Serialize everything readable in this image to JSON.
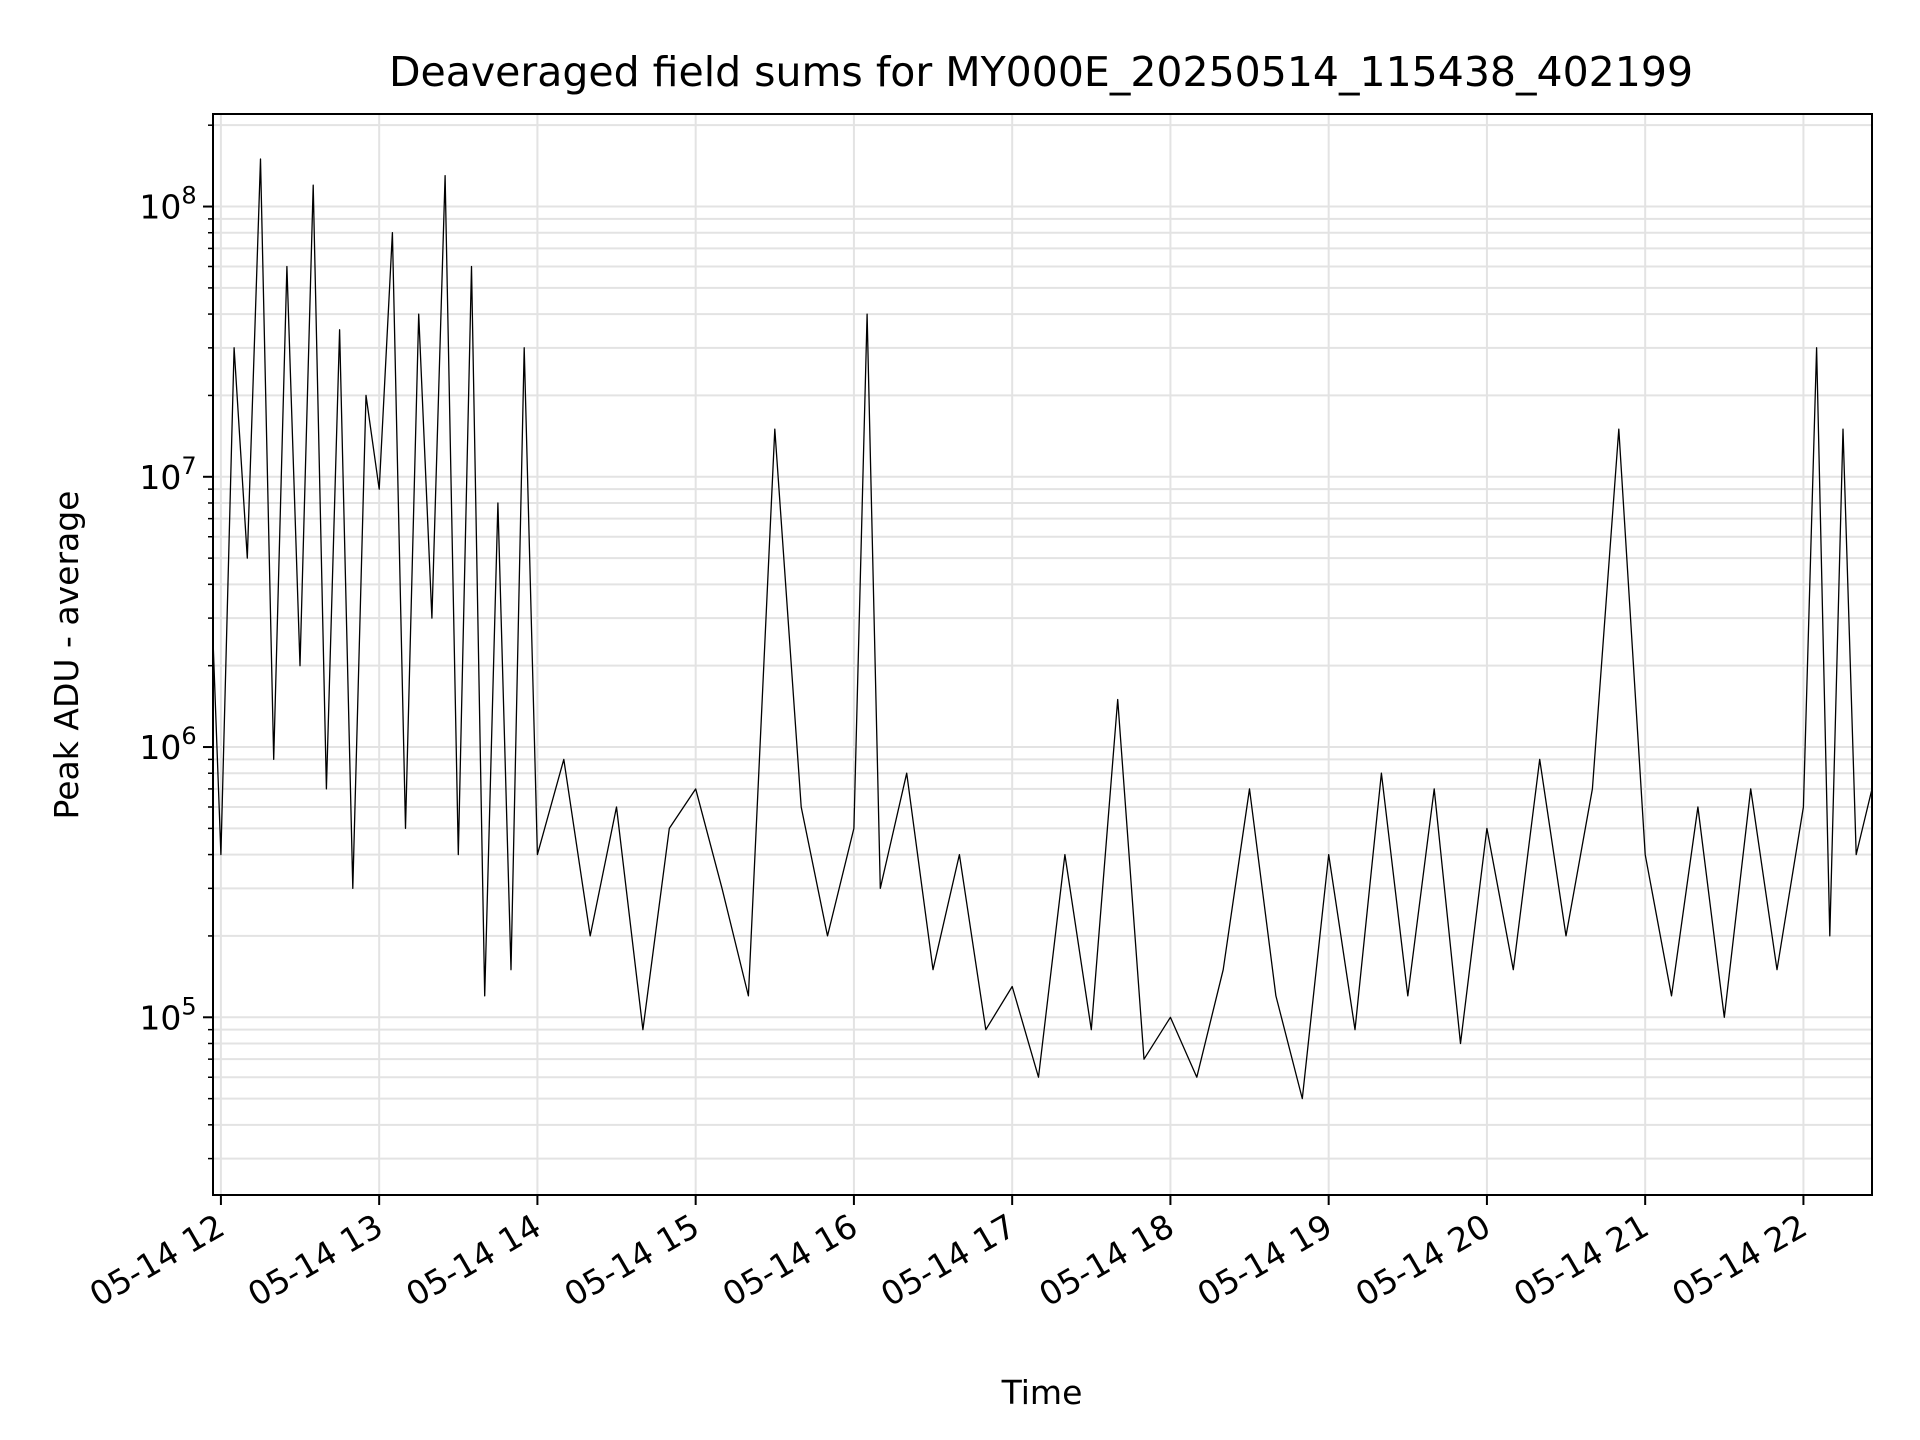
{
  "chart_data": {
    "type": "line",
    "title": "Deaveraged field sums for MY000E_20250514_115438_402199",
    "xlabel": "Time",
    "ylabel": "Peak ADU - average",
    "y_scale": "log",
    "ylim": [
      22000,
      220000000
    ],
    "xlim": [
      "2025-05-14 11:57",
      "2025-05-14 22:26"
    ],
    "x_ticks": [
      "05-14 12",
      "05-14 13",
      "05-14 14",
      "05-14 15",
      "05-14 16",
      "05-14 17",
      "05-14 18",
      "05-14 19",
      "05-14 20",
      "05-14 21",
      "05-14 22"
    ],
    "y_ticks": [
      {
        "base": "10",
        "exp": "5"
      },
      {
        "base": "10",
        "exp": "6"
      },
      {
        "base": "10",
        "exp": "7"
      },
      {
        "base": "10",
        "exp": "8"
      }
    ],
    "grid": true,
    "line_color": "#000000",
    "series": [
      {
        "x": [
          "2025-05-14 11:57",
          "2025-05-14 12:00",
          "2025-05-14 12:05",
          "2025-05-14 12:10",
          "2025-05-14 12:15",
          "2025-05-14 12:20",
          "2025-05-14 12:25",
          "2025-05-14 12:30",
          "2025-05-14 12:35",
          "2025-05-14 12:40",
          "2025-05-14 12:45",
          "2025-05-14 12:50",
          "2025-05-14 12:55",
          "2025-05-14 13:00",
          "2025-05-14 13:05",
          "2025-05-14 13:10",
          "2025-05-14 13:15",
          "2025-05-14 13:20",
          "2025-05-14 13:25",
          "2025-05-14 13:30",
          "2025-05-14 13:35",
          "2025-05-14 13:40",
          "2025-05-14 13:45",
          "2025-05-14 13:50",
          "2025-05-14 13:55",
          "2025-05-14 14:00",
          "2025-05-14 14:10",
          "2025-05-14 14:20",
          "2025-05-14 14:30",
          "2025-05-14 14:40",
          "2025-05-14 14:50",
          "2025-05-14 15:00",
          "2025-05-14 15:10",
          "2025-05-14 15:20",
          "2025-05-14 15:30",
          "2025-05-14 15:40",
          "2025-05-14 15:50",
          "2025-05-14 16:00",
          "2025-05-14 16:05",
          "2025-05-14 16:10",
          "2025-05-14 16:20",
          "2025-05-14 16:30",
          "2025-05-14 16:40",
          "2025-05-14 16:50",
          "2025-05-14 17:00",
          "2025-05-14 17:10",
          "2025-05-14 17:20",
          "2025-05-14 17:30",
          "2025-05-14 17:40",
          "2025-05-14 17:50",
          "2025-05-14 18:00",
          "2025-05-14 18:10",
          "2025-05-14 18:20",
          "2025-05-14 18:30",
          "2025-05-14 18:40",
          "2025-05-14 18:50",
          "2025-05-14 19:00",
          "2025-05-14 19:10",
          "2025-05-14 19:20",
          "2025-05-14 19:30",
          "2025-05-14 19:40",
          "2025-05-14 19:50",
          "2025-05-14 20:00",
          "2025-05-14 20:10",
          "2025-05-14 20:20",
          "2025-05-14 20:30",
          "2025-05-14 20:40",
          "2025-05-14 20:50",
          "2025-05-14 21:00",
          "2025-05-14 21:10",
          "2025-05-14 21:20",
          "2025-05-14 21:30",
          "2025-05-14 21:40",
          "2025-05-14 21:50",
          "2025-05-14 22:00",
          "2025-05-14 22:05",
          "2025-05-14 22:10",
          "2025-05-14 22:15",
          "2025-05-14 22:20",
          "2025-05-14 22:26"
        ],
        "y": [
          2500000,
          400000,
          30000000,
          5000000,
          150000000,
          900000,
          60000000,
          2000000,
          120000000,
          700000,
          35000000,
          300000,
          20000000,
          9000000,
          80000000,
          500000,
          40000000,
          3000000,
          130000000,
          400000,
          60000000,
          120000,
          8000000,
          150000,
          30000000,
          400000,
          900000,
          200000,
          600000,
          90000,
          500000,
          700000,
          300000,
          120000,
          15000000,
          600000,
          200000,
          500000,
          40000000,
          300000,
          800000,
          150000,
          400000,
          90000,
          130000,
          60000,
          400000,
          90000,
          1500000,
          70000,
          100000,
          60000,
          150000,
          700000,
          120000,
          50000,
          400000,
          90000,
          800000,
          120000,
          700000,
          80000,
          500000,
          150000,
          900000,
          200000,
          700000,
          15000000,
          400000,
          120000,
          600000,
          100000,
          700000,
          150000,
          600000,
          30000000,
          200000,
          15000000,
          400000,
          700000
        ]
      }
    ]
  }
}
